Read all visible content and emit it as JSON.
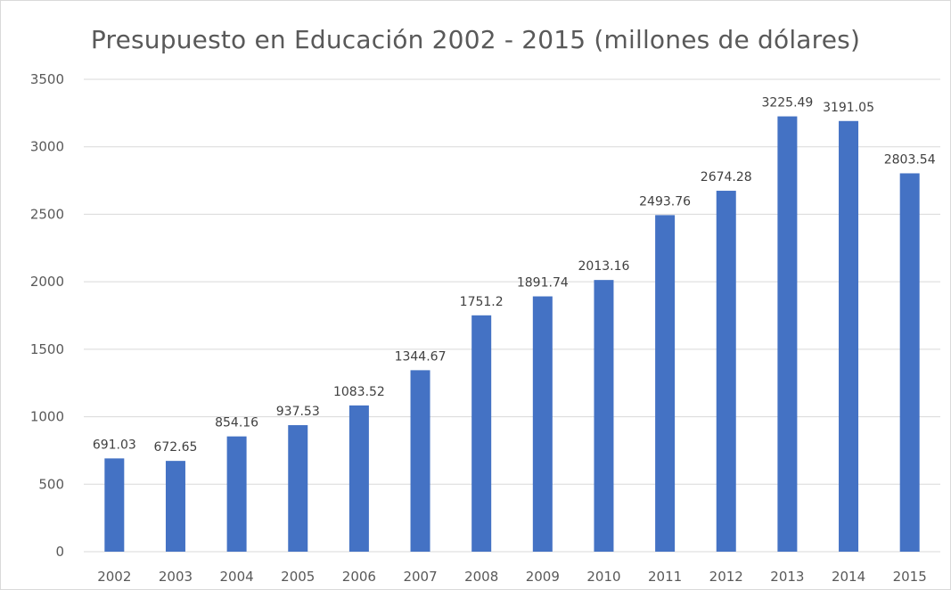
{
  "chart_data": {
    "type": "bar",
    "title": "Presupuesto en Educación 2002 - 2015 (millones  de dólares)",
    "xlabel": "",
    "ylabel": "",
    "categories": [
      "2002",
      "2003",
      "2004",
      "2005",
      "2006",
      "2007",
      "2008",
      "2009",
      "2010",
      "2011",
      "2012",
      "2013",
      "2014",
      "2015"
    ],
    "values": [
      691.03,
      672.65,
      854.16,
      937.53,
      1083.52,
      1344.67,
      1751.2,
      1891.74,
      2013.16,
      2493.76,
      2674.28,
      3225.49,
      3191.05,
      2803.54
    ],
    "data_labels": [
      "691.03",
      "672.65",
      "854.16",
      "937.53",
      "1083.52",
      "1344.67",
      "1751.2",
      "1891.74",
      "2013.16",
      "2493.76",
      "2674.28",
      "3225.49",
      "3191.05",
      "2803.54"
    ],
    "y_ticks": [
      "0",
      "500",
      "1000",
      "1500",
      "2000",
      "2500",
      "3000",
      "3500"
    ],
    "ylim": [
      0,
      3500
    ],
    "grid": true,
    "legend": "none",
    "bar_color": "#4472c4",
    "grid_color": "#d9d9d9"
  }
}
